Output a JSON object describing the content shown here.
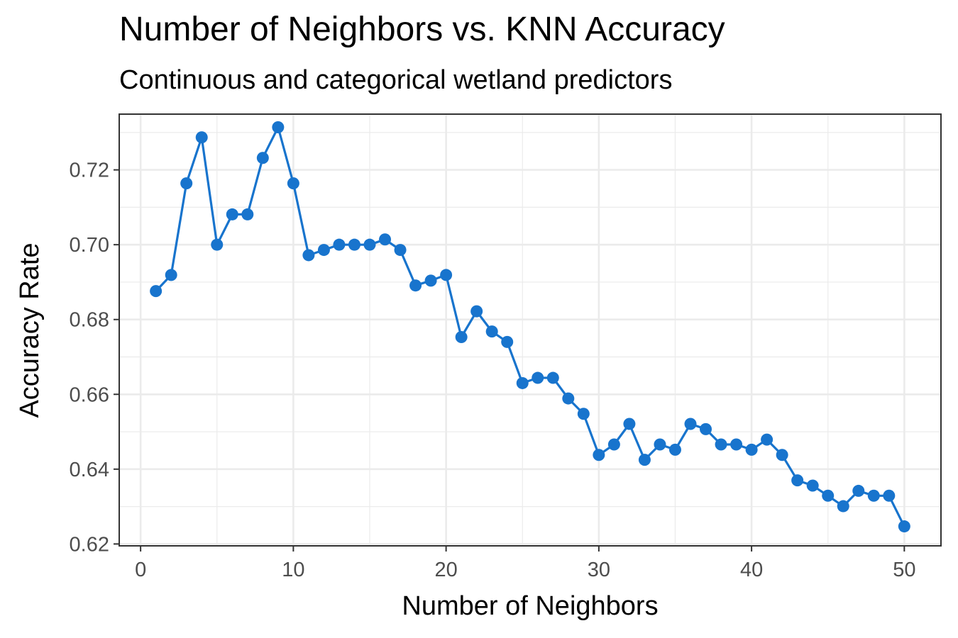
{
  "chart_data": {
    "type": "line",
    "title": "Number of Neighbors vs. KNN Accuracy",
    "subtitle": "Continuous and categorical wetland predictors",
    "xlabel": "Number of Neighbors",
    "ylabel": "Accuracy Rate",
    "xlim": [
      -1.4,
      52.4
    ],
    "ylim": [
      0.6195,
      0.7349
    ],
    "x_ticks": [
      0,
      10,
      20,
      30,
      40,
      50
    ],
    "x_tick_labels": [
      "0",
      "10",
      "20",
      "30",
      "40",
      "50"
    ],
    "y_ticks": [
      0.62,
      0.64,
      0.66,
      0.68,
      0.7,
      0.72
    ],
    "y_tick_labels": [
      "0.62",
      "0.64",
      "0.66",
      "0.68",
      "0.70",
      "0.72"
    ],
    "grid": true,
    "line_color": "#1874CD",
    "series": [
      {
        "x": [
          1,
          2,
          3,
          4,
          5,
          6,
          7,
          8,
          9,
          10,
          11,
          12,
          13,
          14,
          15,
          16,
          17,
          18,
          19,
          20,
          21,
          22,
          23,
          24,
          25,
          26,
          27,
          28,
          29,
          30,
          31,
          32,
          33,
          34,
          35,
          36,
          37,
          38,
          39,
          40,
          41,
          42,
          43,
          44,
          45,
          46,
          47,
          48,
          49,
          50
        ],
        "y": [
          0.6876,
          0.6919,
          0.7164,
          0.7287,
          0.7,
          0.7081,
          0.7081,
          0.7232,
          0.7314,
          0.7164,
          0.6972,
          0.6986,
          0.7,
          0.7,
          0.7,
          0.7014,
          0.6986,
          0.6891,
          0.6904,
          0.6919,
          0.6753,
          0.6822,
          0.6768,
          0.674,
          0.663,
          0.6644,
          0.6644,
          0.6589,
          0.6548,
          0.6438,
          0.6466,
          0.6521,
          0.6425,
          0.6466,
          0.6452,
          0.6521,
          0.6507,
          0.6466,
          0.6466,
          0.6452,
          0.6479,
          0.6438,
          0.637,
          0.6356,
          0.6329,
          0.6301,
          0.6342,
          0.6329,
          0.6329,
          0.6247
        ]
      }
    ]
  }
}
